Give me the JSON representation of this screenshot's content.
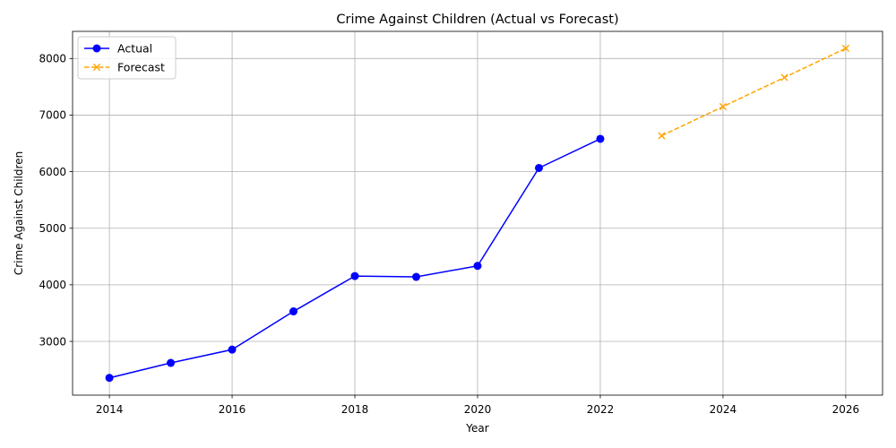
{
  "chart_data": {
    "type": "line",
    "title": "Crime Against Children (Actual vs Forecast)",
    "xlabel": "Year",
    "ylabel": "Crime Against Children",
    "xlim": [
      2013.4,
      2026.6
    ],
    "ylim": [
      2050,
      8480
    ],
    "xticks": [
      2014,
      2016,
      2018,
      2020,
      2022,
      2024,
      2026
    ],
    "yticks": [
      3000,
      4000,
      5000,
      6000,
      7000,
      8000
    ],
    "grid": true,
    "legend_position": "top-left",
    "series": [
      {
        "name": "Actual",
        "color": "#0000ff",
        "line_style": "solid",
        "marker": "circle",
        "x": [
          2014,
          2015,
          2016,
          2017,
          2018,
          2019,
          2020,
          2021,
          2022
        ],
        "y": [
          2355,
          2620,
          2855,
          3530,
          4155,
          4140,
          4335,
          6065,
          6580
        ]
      },
      {
        "name": "Forecast",
        "color": "#ffa500",
        "line_style": "dashed",
        "marker": "x",
        "x": [
          2023,
          2024,
          2025,
          2026
        ],
        "y": [
          6635,
          7150,
          7665,
          8180
        ]
      }
    ]
  }
}
